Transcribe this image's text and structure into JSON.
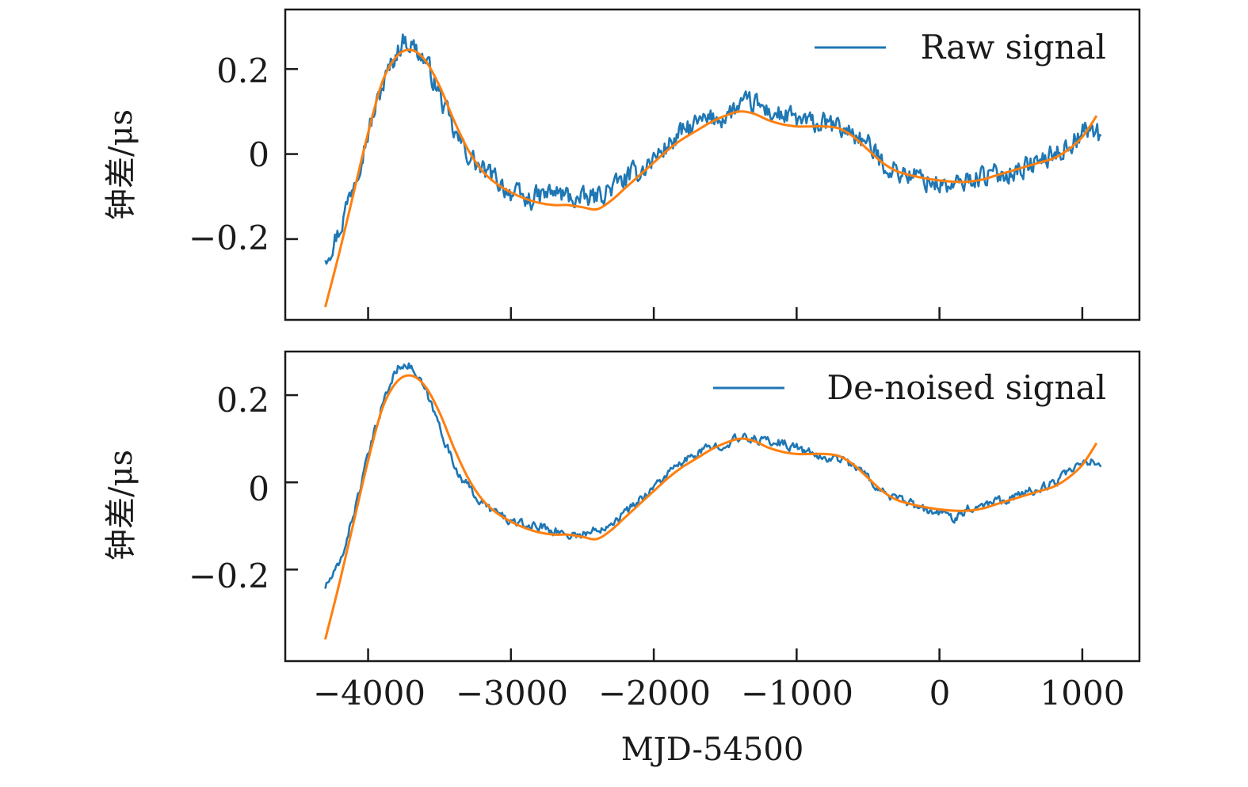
{
  "chart_data": [
    {
      "type": "line",
      "panel": "top",
      "title": "",
      "xlabel": "",
      "ylabel": "钟差/μs",
      "xlim": [
        -4580,
        1400
      ],
      "ylim": [
        -0.39,
        0.34
      ],
      "xticks": [
        -4000,
        -3000,
        -2000,
        -1000,
        0,
        1000
      ],
      "xtick_labels_visible": false,
      "yticks": [
        -0.2,
        0,
        0.2
      ],
      "ytick_labels": [
        "−0.2",
        "0",
        "0.2"
      ],
      "grid": false,
      "legend": {
        "position": "top-right",
        "entries": [
          "Raw signal"
        ]
      },
      "series": [
        {
          "name": "Raw signal",
          "color": "#1f77b4",
          "noise_level": "high",
          "x": [
            -4300,
            -4200,
            -4100,
            -4000,
            -3900,
            -3800,
            -3750,
            -3700,
            -3600,
            -3500,
            -3400,
            -3300,
            -3200,
            -3100,
            -3000,
            -2900,
            -2800,
            -2700,
            -2600,
            -2500,
            -2400,
            -2300,
            -2200,
            -2100,
            -2000,
            -1900,
            -1800,
            -1700,
            -1600,
            -1500,
            -1400,
            -1300,
            -1200,
            -1100,
            -1000,
            -900,
            -800,
            -700,
            -600,
            -500,
            -400,
            -300,
            -200,
            -100,
            0,
            100,
            200,
            300,
            400,
            500,
            600,
            700,
            800,
            900,
            1000,
            1100,
            1130
          ],
          "values": [
            -0.24,
            -0.18,
            -0.06,
            0.05,
            0.16,
            0.24,
            0.27,
            0.26,
            0.22,
            0.14,
            0.05,
            0.0,
            -0.04,
            -0.06,
            -0.09,
            -0.11,
            -0.1,
            -0.09,
            -0.1,
            -0.11,
            -0.1,
            -0.08,
            -0.06,
            -0.04,
            -0.01,
            0.02,
            0.05,
            0.07,
            0.08,
            0.09,
            0.11,
            0.12,
            0.1,
            0.09,
            0.08,
            0.07,
            0.07,
            0.06,
            0.05,
            0.02,
            -0.02,
            -0.04,
            -0.05,
            -0.06,
            -0.07,
            -0.08,
            -0.06,
            -0.05,
            -0.05,
            -0.04,
            -0.03,
            -0.02,
            0.0,
            0.02,
            0.05,
            0.06,
            0.03
          ]
        },
        {
          "name": "",
          "color": "#ff7f0e",
          "x": [
            -4300,
            -4200,
            -4100,
            -4000,
            -3900,
            -3800,
            -3700,
            -3600,
            -3500,
            -3400,
            -3300,
            -3200,
            -3100,
            -3000,
            -2900,
            -2800,
            -2700,
            -2600,
            -2500,
            -2400,
            -2300,
            -2200,
            -2100,
            -2000,
            -1900,
            -1800,
            -1700,
            -1600,
            -1500,
            -1400,
            -1300,
            -1200,
            -1100,
            -1000,
            -900,
            -800,
            -700,
            -600,
            -500,
            -400,
            -300,
            -200,
            -100,
            0,
            100,
            200,
            300,
            400,
            500,
            600,
            700,
            800,
            900,
            1000,
            1100
          ],
          "values": [
            -0.36,
            -0.23,
            -0.09,
            0.05,
            0.17,
            0.23,
            0.245,
            0.22,
            0.16,
            0.08,
            0.01,
            -0.04,
            -0.07,
            -0.09,
            -0.105,
            -0.115,
            -0.12,
            -0.12,
            -0.125,
            -0.13,
            -0.11,
            -0.08,
            -0.05,
            -0.02,
            0.01,
            0.035,
            0.055,
            0.075,
            0.09,
            0.1,
            0.095,
            0.08,
            0.07,
            0.065,
            0.065,
            0.065,
            0.06,
            0.04,
            0.01,
            -0.02,
            -0.04,
            -0.05,
            -0.057,
            -0.062,
            -0.065,
            -0.065,
            -0.06,
            -0.05,
            -0.04,
            -0.03,
            -0.02,
            -0.01,
            0.01,
            0.04,
            0.09
          ]
        }
      ]
    },
    {
      "type": "line",
      "panel": "bottom",
      "title": "",
      "xlabel": "MJD-54500",
      "ylabel": "钟差/μs",
      "xlim": [
        -4580,
        1400
      ],
      "ylim": [
        -0.41,
        0.3
      ],
      "xticks": [
        -4000,
        -3000,
        -2000,
        -1000,
        0,
        1000
      ],
      "xtick_labels": [
        "−4000",
        "−3000",
        "−2000",
        "−1000",
        "0",
        "1000"
      ],
      "yticks": [
        -0.2,
        0,
        0.2
      ],
      "ytick_labels": [
        "−0.2",
        "0",
        "0.2"
      ],
      "grid": false,
      "legend": {
        "position": "top-right",
        "entries": [
          "De-noised signal"
        ]
      },
      "series": [
        {
          "name": "De-noised signal",
          "color": "#1f77b4",
          "noise_level": "low",
          "x": [
            -4300,
            -4200,
            -4100,
            -4000,
            -3900,
            -3800,
            -3750,
            -3700,
            -3600,
            -3500,
            -3400,
            -3300,
            -3200,
            -3100,
            -3000,
            -2900,
            -2800,
            -2700,
            -2600,
            -2500,
            -2400,
            -2300,
            -2200,
            -2100,
            -2000,
            -1900,
            -1800,
            -1700,
            -1600,
            -1500,
            -1400,
            -1300,
            -1200,
            -1100,
            -1000,
            -900,
            -800,
            -700,
            -600,
            -500,
            -400,
            -300,
            -200,
            -100,
            0,
            100,
            200,
            300,
            400,
            500,
            600,
            700,
            800,
            900,
            1000,
            1100,
            1130
          ],
          "values": [
            -0.24,
            -0.19,
            -0.07,
            0.06,
            0.18,
            0.26,
            0.275,
            0.265,
            0.21,
            0.13,
            0.04,
            -0.01,
            -0.05,
            -0.07,
            -0.09,
            -0.1,
            -0.1,
            -0.11,
            -0.12,
            -0.12,
            -0.11,
            -0.09,
            -0.07,
            -0.04,
            -0.01,
            0.02,
            0.045,
            0.065,
            0.08,
            0.09,
            0.1,
            0.1,
            0.095,
            0.09,
            0.08,
            0.065,
            0.055,
            0.055,
            0.04,
            0.01,
            -0.02,
            -0.04,
            -0.05,
            -0.065,
            -0.07,
            -0.08,
            -0.06,
            -0.05,
            -0.04,
            -0.035,
            -0.025,
            -0.015,
            0.0,
            0.02,
            0.04,
            0.05,
            0.04
          ]
        },
        {
          "name": "",
          "color": "#ff7f0e",
          "x": [
            -4300,
            -4200,
            -4100,
            -4000,
            -3900,
            -3800,
            -3700,
            -3600,
            -3500,
            -3400,
            -3300,
            -3200,
            -3100,
            -3000,
            -2900,
            -2800,
            -2700,
            -2600,
            -2500,
            -2400,
            -2300,
            -2200,
            -2100,
            -2000,
            -1900,
            -1800,
            -1700,
            -1600,
            -1500,
            -1400,
            -1300,
            -1200,
            -1100,
            -1000,
            -900,
            -800,
            -700,
            -600,
            -500,
            -400,
            -300,
            -200,
            -100,
            0,
            100,
            200,
            300,
            400,
            500,
            600,
            700,
            800,
            900,
            1000,
            1100
          ],
          "values": [
            -0.36,
            -0.23,
            -0.09,
            0.05,
            0.17,
            0.23,
            0.245,
            0.22,
            0.16,
            0.08,
            0.01,
            -0.04,
            -0.07,
            -0.09,
            -0.105,
            -0.115,
            -0.12,
            -0.12,
            -0.125,
            -0.13,
            -0.11,
            -0.08,
            -0.05,
            -0.02,
            0.01,
            0.035,
            0.055,
            0.075,
            0.09,
            0.1,
            0.095,
            0.08,
            0.07,
            0.065,
            0.065,
            0.065,
            0.06,
            0.04,
            0.01,
            -0.02,
            -0.04,
            -0.05,
            -0.057,
            -0.062,
            -0.065,
            -0.065,
            -0.06,
            -0.05,
            -0.04,
            -0.03,
            -0.02,
            -0.01,
            0.01,
            0.04,
            0.09
          ]
        }
      ]
    }
  ]
}
